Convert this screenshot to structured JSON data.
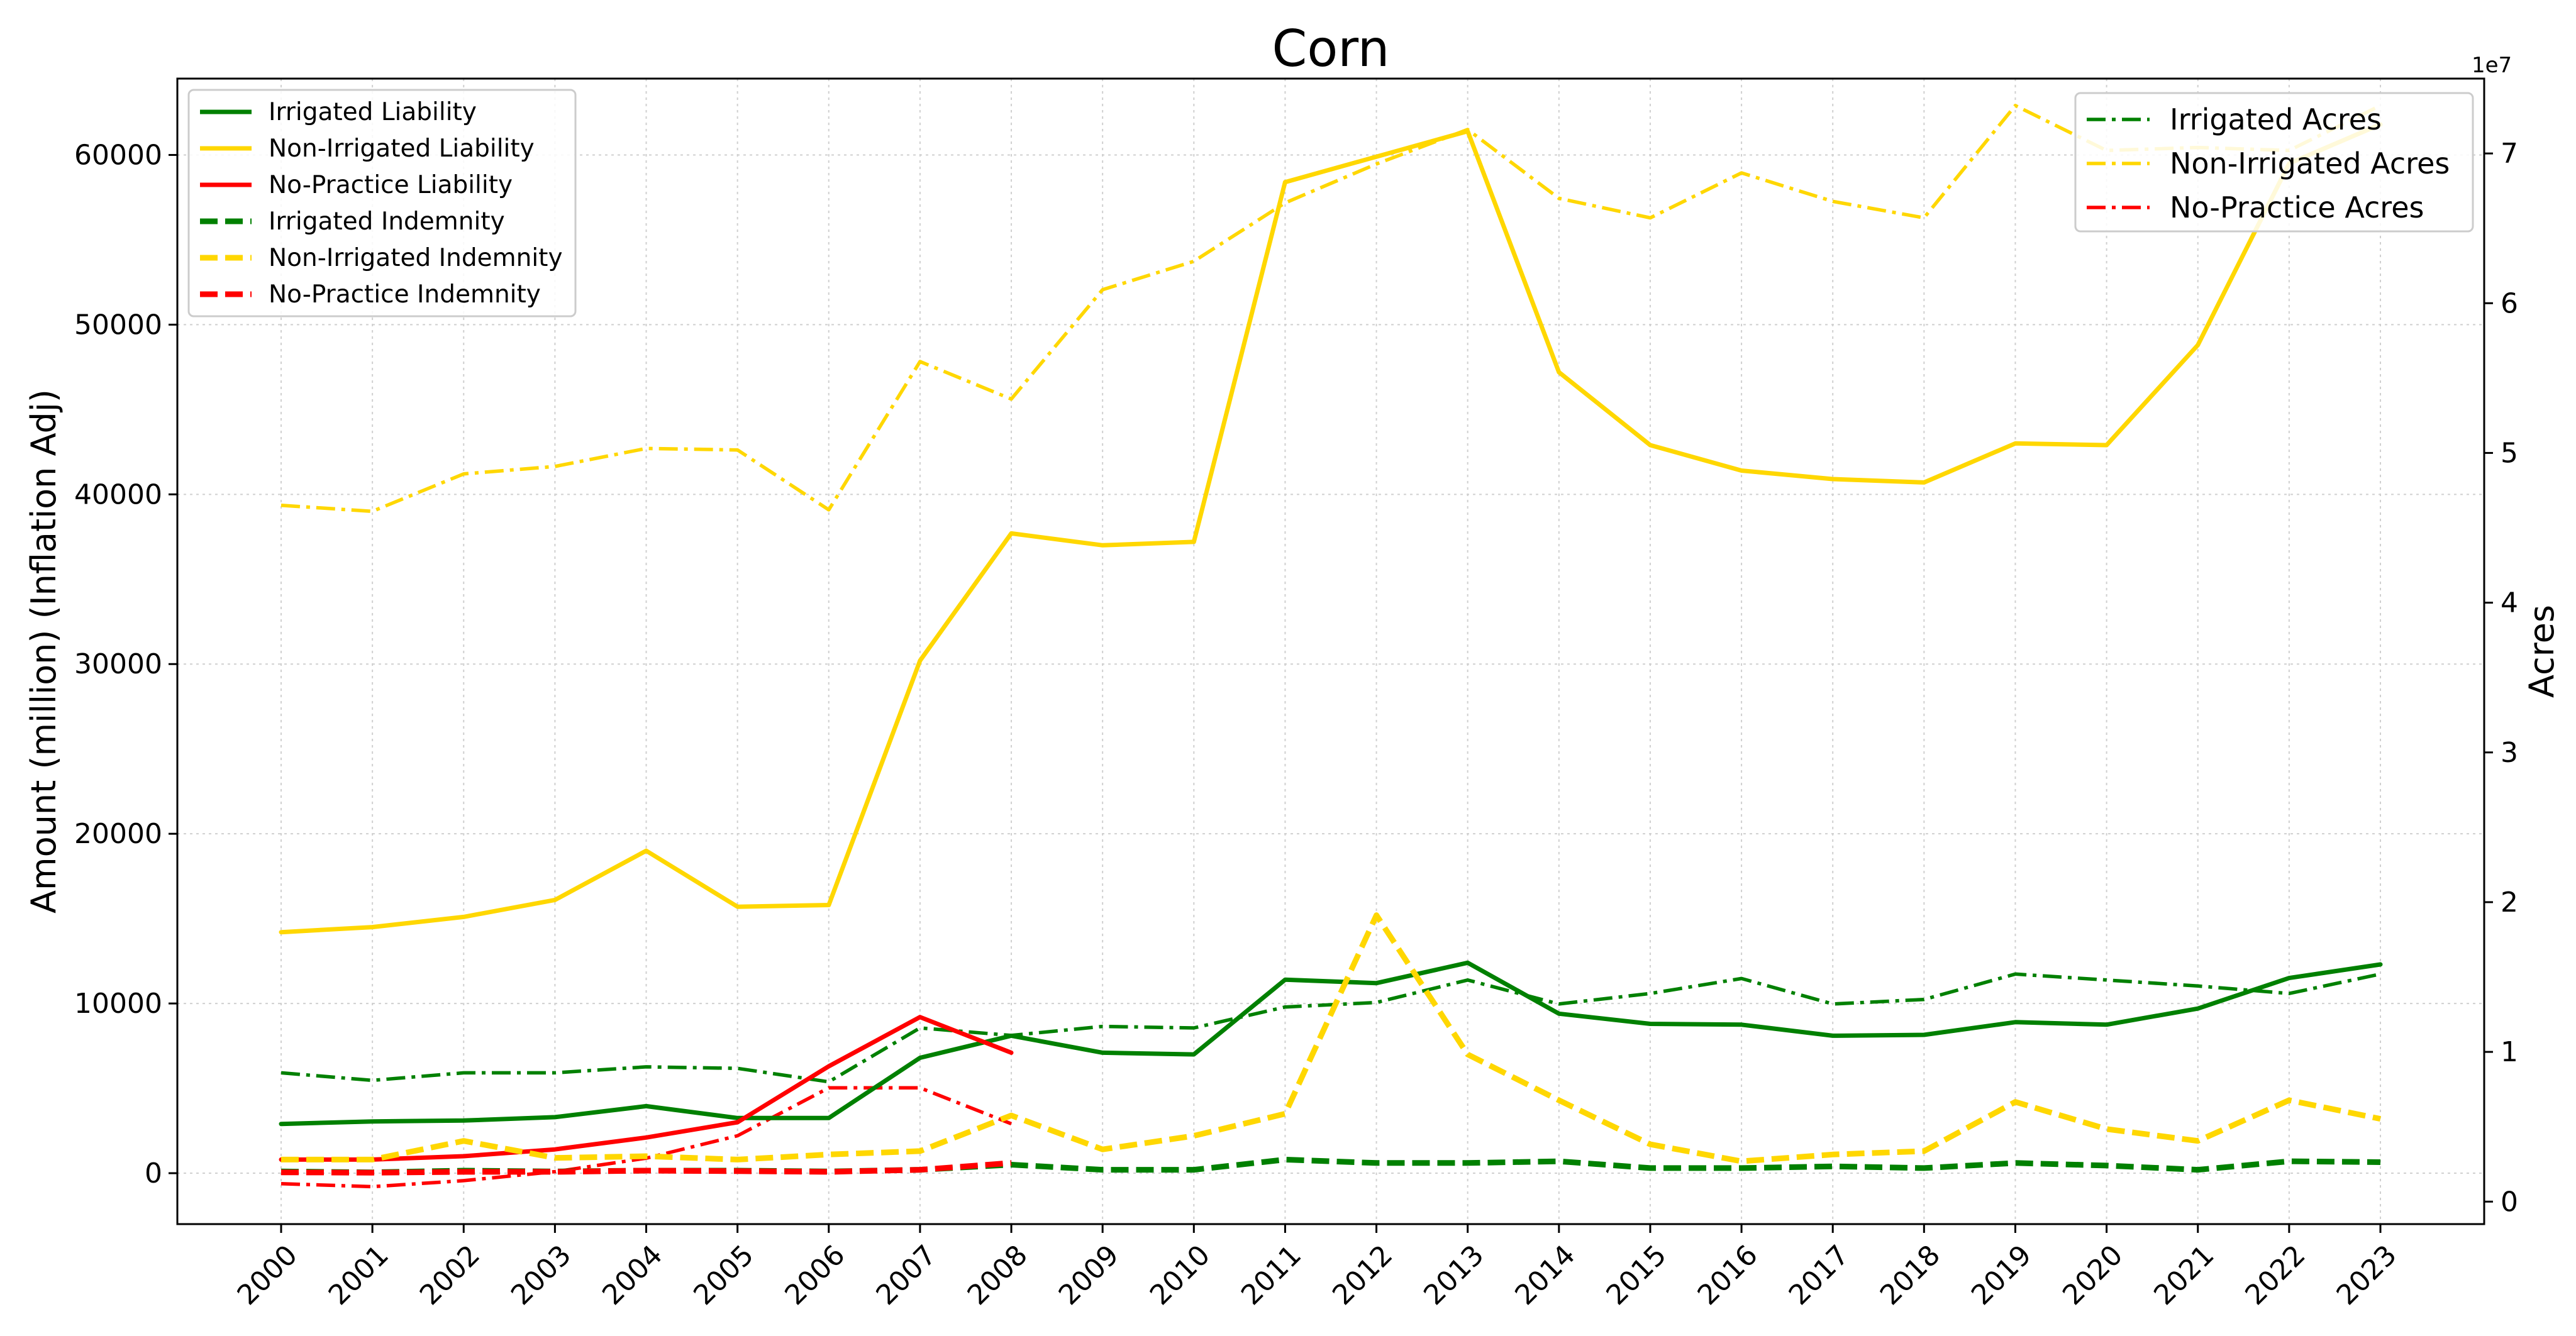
{
  "chart_data": {
    "type": "line",
    "title": "Corn",
    "ylabel": "Amount (million) (Inflation Adj)",
    "y2label": "Acres",
    "y2_offset_label": "1e7",
    "x": [
      2000,
      2001,
      2002,
      2003,
      2004,
      2005,
      2006,
      2007,
      2008,
      2009,
      2010,
      2011,
      2012,
      2013,
      2014,
      2015,
      2016,
      2017,
      2018,
      2019,
      2020,
      2021,
      2022,
      2023
    ],
    "x_tick_labels": [
      "2000",
      "2001",
      "2002",
      "2003",
      "2004",
      "2005",
      "2006",
      "2007",
      "2008",
      "2009",
      "2010",
      "2011",
      "2012",
      "2013",
      "2014",
      "2015",
      "2016",
      "2017",
      "2018",
      "2019",
      "2020",
      "2021",
      "2022",
      "2023"
    ],
    "ylim": [
      -3000,
      64500
    ],
    "y_ticks": [
      0,
      10000,
      20000,
      30000,
      40000,
      50000,
      60000
    ],
    "y_tick_labels": [
      "0",
      "10000",
      "20000",
      "30000",
      "40000",
      "50000",
      "60000"
    ],
    "y2lim": [
      -0.15,
      7.5
    ],
    "y2_ticks": [
      0,
      1,
      2,
      3,
      4,
      5,
      6,
      7
    ],
    "y2_tick_labels": [
      "0",
      "1",
      "2",
      "3",
      "4",
      "5",
      "6",
      "7"
    ],
    "grid": true,
    "colors": {
      "irrigated": "#008000",
      "non_irrigated": "#FFD700",
      "no_practice": "#FF0000"
    },
    "left_legend_placement": "top-left",
    "right_legend_placement": "top-right",
    "series_left": [
      {
        "name": "Irrigated Liability",
        "style": "solid",
        "color": "#008000",
        "values": [
          2900,
          3050,
          3100,
          3300,
          3950,
          3250,
          3250,
          6800,
          8100,
          7100,
          7000,
          11400,
          11200,
          12400,
          9400,
          8800,
          8750,
          8100,
          8150,
          8900,
          8750,
          9700,
          11500,
          12300
        ]
      },
      {
        "name": "Non-Irrigated Liability",
        "style": "solid",
        "color": "#FFD700",
        "values": [
          14200,
          14500,
          15100,
          16100,
          19000,
          15700,
          15800,
          30200,
          37700,
          37000,
          37200,
          58400,
          59900,
          61400,
          47200,
          42900,
          41400,
          40900,
          40700,
          43000,
          42900,
          48800,
          59500,
          61800
        ]
      },
      {
        "name": "No-Practice Liability",
        "style": "solid",
        "color": "#FF0000",
        "values": [
          800,
          800,
          1000,
          1400,
          2100,
          3000,
          6300,
          9200,
          7100,
          null,
          null,
          null,
          null,
          null,
          null,
          null,
          null,
          null,
          null,
          null,
          null,
          null,
          null,
          null
        ]
      },
      {
        "name": "Irrigated Indemnity",
        "style": "dashed",
        "color": "#008000",
        "values": [
          100,
          50,
          150,
          100,
          150,
          150,
          100,
          200,
          500,
          200,
          200,
          800,
          600,
          600,
          700,
          300,
          300,
          400,
          300,
          600,
          450,
          200,
          700,
          650
        ]
      },
      {
        "name": "Non-Irrigated Indemnity",
        "style": "dashed",
        "color": "#FFD700",
        "values": [
          800,
          800,
          1900,
          900,
          1000,
          800,
          1100,
          1300,
          3400,
          1400,
          2200,
          3500,
          15200,
          7000,
          4300,
          1700,
          700,
          1100,
          1300,
          4200,
          2600,
          1900,
          4300,
          3200
        ]
      },
      {
        "name": "No-Practice Indemnity",
        "style": "dashed",
        "color": "#FF0000",
        "values": [
          50,
          30,
          80,
          80,
          150,
          120,
          80,
          200,
          600,
          null,
          null,
          null,
          null,
          null,
          null,
          null,
          null,
          null,
          null,
          null,
          null,
          null,
          null,
          null
        ]
      }
    ],
    "series_right": [
      {
        "name": "Irrigated Acres",
        "style": "dashdot",
        "color": "#008000",
        "values": [
          0.86,
          0.81,
          0.86,
          0.86,
          0.9,
          0.89,
          0.8,
          1.16,
          1.11,
          1.17,
          1.16,
          1.3,
          1.33,
          1.48,
          1.32,
          1.39,
          1.49,
          1.32,
          1.35,
          1.52,
          1.48,
          1.44,
          1.39,
          1.52
        ]
      },
      {
        "name": "Non-Irrigated Acres",
        "style": "dashdot",
        "color": "#FFD700",
        "values": [
          4.65,
          4.61,
          4.86,
          4.91,
          5.03,
          5.02,
          4.62,
          5.61,
          5.36,
          6.09,
          6.28,
          6.67,
          6.93,
          7.16,
          6.7,
          6.57,
          6.87,
          6.68,
          6.57,
          7.32,
          7.02,
          7.04,
          7.02,
          7.32
        ]
      },
      {
        "name": "No-Practice Acres",
        "style": "dashdot",
        "color": "#FF0000",
        "values": [
          0.12,
          0.1,
          0.14,
          0.2,
          0.29,
          0.44,
          0.76,
          0.76,
          0.52,
          null,
          null,
          null,
          null,
          null,
          null,
          null,
          null,
          null,
          null,
          null,
          null,
          null,
          null,
          null
        ]
      }
    ]
  }
}
